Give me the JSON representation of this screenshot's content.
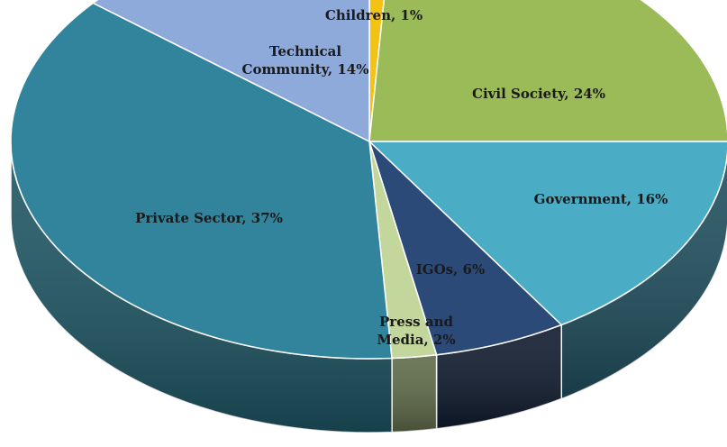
{
  "chart_data": {
    "type": "pie",
    "title": "",
    "slices": [
      {
        "label": "Children, 1%",
        "value": 1,
        "color": "#f2c314"
      },
      {
        "label": "Civil Society, 24%",
        "value": 24,
        "color": "#9bbb59"
      },
      {
        "label": "Government, 16%",
        "value": 16,
        "color": "#4bacc6"
      },
      {
        "label": "IGOs, 6%",
        "value": 6,
        "color": "#2c4a78"
      },
      {
        "label": "Press and Media, 2%",
        "value": 2,
        "color": "#c3d69b"
      },
      {
        "label": "Private Sector, 37%",
        "value": 37,
        "color": "#31849b"
      },
      {
        "label": "Technical Community, 14%",
        "value": 14,
        "color": "#8eaadb"
      }
    ],
    "side_colors": [
      "#7d6a10",
      "#5c7033",
      "#1f4f5e",
      "#0f1a2d",
      "#5e6a48",
      "#1d5664",
      "#4a5d80"
    ]
  }
}
